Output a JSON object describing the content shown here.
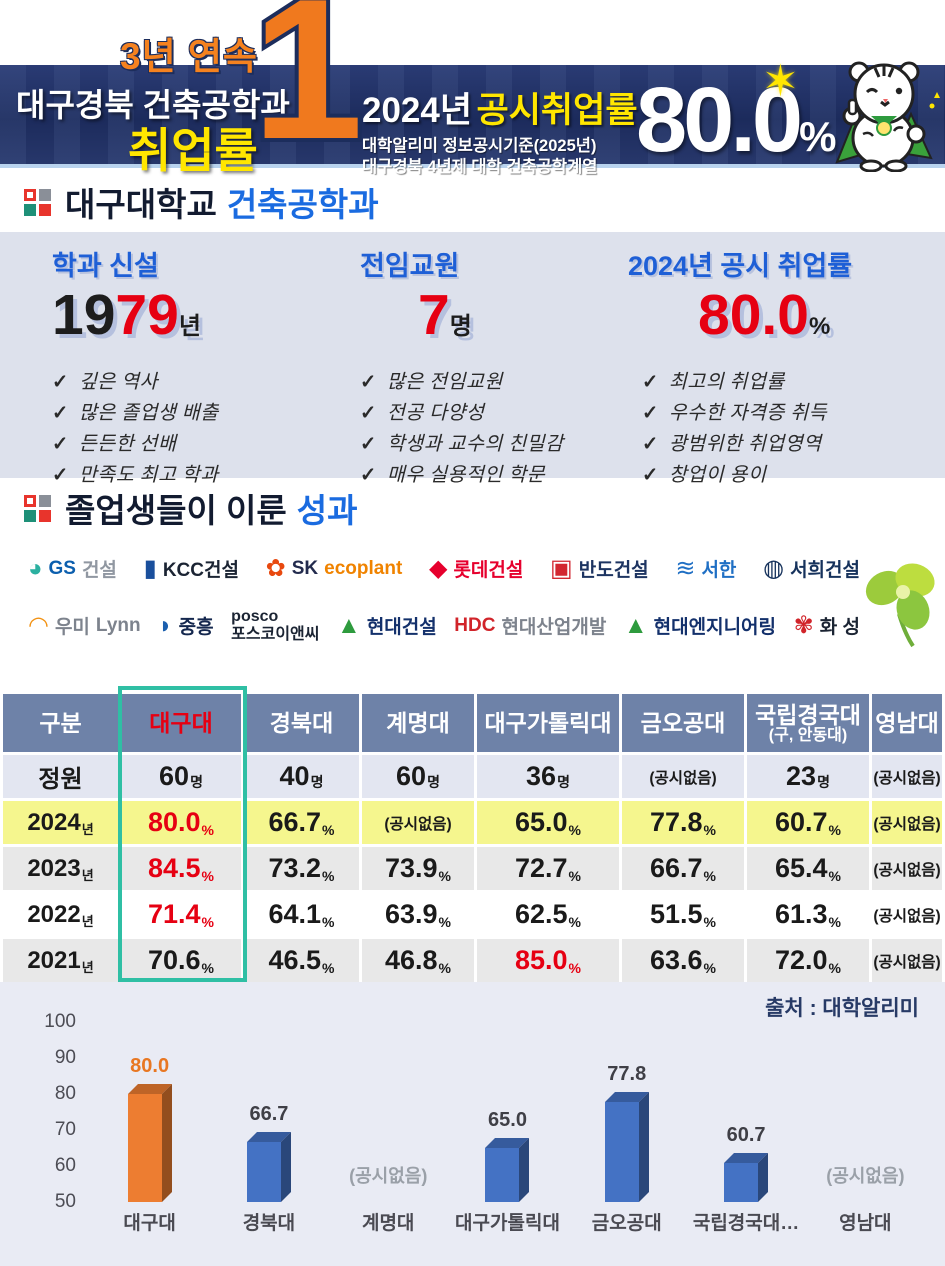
{
  "header": {
    "streak": "3년 연속",
    "rank": "1",
    "title_line1": "대구경북 건축공학과",
    "title_line2": "취업률",
    "year": "2024년",
    "metric": "공시취업률",
    "note1": "대학알리미 정보공시기준(2025년)",
    "note2": "대구경북 4년제 대학 건축공학계열",
    "value": "80.0",
    "unit": "%",
    "sparkle": "✶"
  },
  "section1": {
    "title_dark": "대구대학교",
    "title_blue": "건축공학과"
  },
  "check_glyph": "✓",
  "stats": [
    {
      "heading": "학과 신설",
      "value_black": "19",
      "value_red": "79",
      "unit": "년",
      "items": [
        "깊은 역사",
        "많은 졸업생 배출",
        "든든한 선배",
        "만족도 최고 학과"
      ]
    },
    {
      "heading": "전임교원",
      "value_black": "",
      "value_red": "7",
      "unit": "명",
      "items": [
        "많은 전임교원",
        "전공 다양성",
        "학생과 교수의 친밀감",
        "매우 실용적인 학문"
      ]
    },
    {
      "heading": "2024년 공시 취업률",
      "value_black": "",
      "value_red": "80.0",
      "unit": "%",
      "items": [
        "최고의 취업률",
        "우수한 자격증 취득",
        "광범위한 취업영역",
        "창업이 용이"
      ]
    }
  ],
  "section2": {
    "title_dark": "졸업생들이 이룬",
    "title_blue": "성과"
  },
  "companies": {
    "row1": [
      {
        "mark": "◕",
        "mark_color": "#2bb0a0",
        "parts": [
          {
            "t": "GS",
            "c": "#0c5fae"
          },
          {
            "t": "건설",
            "c": "#9097a1"
          }
        ]
      },
      {
        "mark": "▮",
        "mark_color": "#1a4f9c",
        "parts": [
          {
            "t": "KCC건설",
            "c": "#1b2433"
          }
        ]
      },
      {
        "mark": "✿",
        "mark_color": "#e8490f",
        "parts": [
          {
            "t": "SK",
            "c": "#232b4e"
          },
          {
            "t": "ecoplant",
            "c": "#f08300"
          }
        ]
      },
      {
        "mark": "◆",
        "mark_color": "#e6002d",
        "parts": [
          {
            "t": "롯데건설",
            "c": "#e6002d"
          }
        ]
      },
      {
        "mark": "▣",
        "mark_color": "#d22730",
        "parts": [
          {
            "t": "반도건설",
            "c": "#1d3461"
          }
        ]
      },
      {
        "mark": "≋",
        "mark_color": "#1f6fc4",
        "parts": [
          {
            "t": "서한",
            "c": "#1f6fc4"
          }
        ]
      },
      {
        "mark": "◍",
        "mark_color": "#16325c",
        "parts": [
          {
            "t": "서희건설",
            "c": "#16325c"
          }
        ]
      }
    ],
    "row2": [
      {
        "mark": "◠",
        "mark_color": "#f29111",
        "parts": [
          {
            "t": "우미 ",
            "c": "#7d838d"
          },
          {
            "t": "Lynn",
            "c": "#7d838d"
          }
        ]
      },
      {
        "mark": "◗",
        "mark_color": "#1b5fae",
        "parts": [
          {
            "t": "중흥",
            "c": "#14274e"
          }
        ]
      },
      {
        "mark": "",
        "mark_color": "",
        "two_line": true,
        "parts": [
          {
            "t": "posco\n포스코이앤씨",
            "c": "#1b2433"
          }
        ]
      },
      {
        "mark": "▲",
        "mark_color": "#2e9b3e",
        "parts": [
          {
            "t": "현대건설",
            "c": "#13306b"
          }
        ]
      },
      {
        "mark": "",
        "mark_color": "",
        "parts": [
          {
            "t": "HDC ",
            "c": "#d1242a"
          },
          {
            "t": "현대산업개발",
            "c": "#7d838d"
          }
        ]
      },
      {
        "mark": "▲",
        "mark_color": "#2e9b3e",
        "parts": [
          {
            "t": "현대엔지니어링",
            "c": "#13306b"
          }
        ]
      },
      {
        "mark": "✾",
        "mark_color": "#d1242a",
        "parts": [
          {
            "t": "화 성",
            "c": "#1b2433"
          }
        ]
      }
    ]
  },
  "table": {
    "headers": [
      {
        "t": "구분"
      },
      {
        "t": "대구대",
        "red": true
      },
      {
        "t": "경북대"
      },
      {
        "t": "계명대"
      },
      {
        "t": "대구가톨릭대"
      },
      {
        "t": "금오공대"
      },
      {
        "t": "국립경국대",
        "sub": "(구, 안동대)"
      },
      {
        "t": "영남대"
      }
    ],
    "rows": [
      {
        "label": "정원",
        "label_u": "",
        "bg": "#e3e6f1",
        "cells": [
          {
            "v": "60",
            "u": "명"
          },
          {
            "v": "40",
            "u": "명"
          },
          {
            "v": "60",
            "u": "명"
          },
          {
            "v": "36",
            "u": "명"
          },
          {
            "v": "(공시없음)",
            "small": true
          },
          {
            "v": "23",
            "u": "명"
          },
          {
            "v": "(공시없음)",
            "small": true
          }
        ]
      },
      {
        "label": "2024",
        "label_u": "년",
        "bg": "#f5f68e",
        "cells": [
          {
            "v": "80.0",
            "u": "%",
            "red": true
          },
          {
            "v": "66.7",
            "u": "%"
          },
          {
            "v": "(공시없음)",
            "small": true
          },
          {
            "v": "65.0",
            "u": "%"
          },
          {
            "v": "77.8",
            "u": "%"
          },
          {
            "v": "60.7",
            "u": "%"
          },
          {
            "v": "(공시없음)",
            "small": true
          }
        ]
      },
      {
        "label": "2023",
        "label_u": "년",
        "bg": "#e8e8e8",
        "cells": [
          {
            "v": "84.5",
            "u": "%",
            "red": true
          },
          {
            "v": "73.2",
            "u": "%"
          },
          {
            "v": "73.9",
            "u": "%"
          },
          {
            "v": "72.7",
            "u": "%"
          },
          {
            "v": "66.7",
            "u": "%"
          },
          {
            "v": "65.4",
            "u": "%"
          },
          {
            "v": "(공시없음)",
            "small": true
          }
        ]
      },
      {
        "label": "2022",
        "label_u": "년",
        "bg": "#ffffff",
        "cells": [
          {
            "v": "71.4",
            "u": "%",
            "red": true
          },
          {
            "v": "64.1",
            "u": "%"
          },
          {
            "v": "63.9",
            "u": "%"
          },
          {
            "v": "62.5",
            "u": "%"
          },
          {
            "v": "51.5",
            "u": "%"
          },
          {
            "v": "61.3",
            "u": "%"
          },
          {
            "v": "(공시없음)",
            "small": true
          }
        ]
      },
      {
        "label": "2021",
        "label_u": "년",
        "bg": "#e8e8e8",
        "cells": [
          {
            "v": "70.6",
            "u": "%"
          },
          {
            "v": "46.5",
            "u": "%"
          },
          {
            "v": "46.8",
            "u": "%"
          },
          {
            "v": "85.0",
            "u": "%",
            "red": true
          },
          {
            "v": "63.6",
            "u": "%"
          },
          {
            "v": "72.0",
            "u": "%"
          },
          {
            "v": "(공시없음)",
            "small": true
          }
        ]
      }
    ],
    "highlight_color": "#2fbfa4"
  },
  "chart_data": {
    "type": "bar",
    "title": "",
    "categories": [
      "대구대",
      "경북대",
      "계명대",
      "대구가톨릭대",
      "금오공대",
      "국립경국대…",
      "영남대"
    ],
    "values": [
      80.0,
      66.7,
      null,
      65.0,
      77.8,
      60.7,
      null
    ],
    "missing_label": "(공시없음)",
    "bar_colors": [
      "#ed7d31",
      "#4472c4",
      "#4472c4",
      "#4472c4",
      "#4472c4",
      "#4472c4",
      "#4472c4"
    ],
    "highlight_index": 0,
    "highlight_label_color": "#e87722",
    "label_color": "#3f3f46",
    "ylim": [
      50,
      100
    ],
    "yticks": [
      100,
      90,
      80,
      70,
      60,
      50
    ],
    "grid": false,
    "legend": false,
    "source": "출처 : 대학알리미"
  }
}
